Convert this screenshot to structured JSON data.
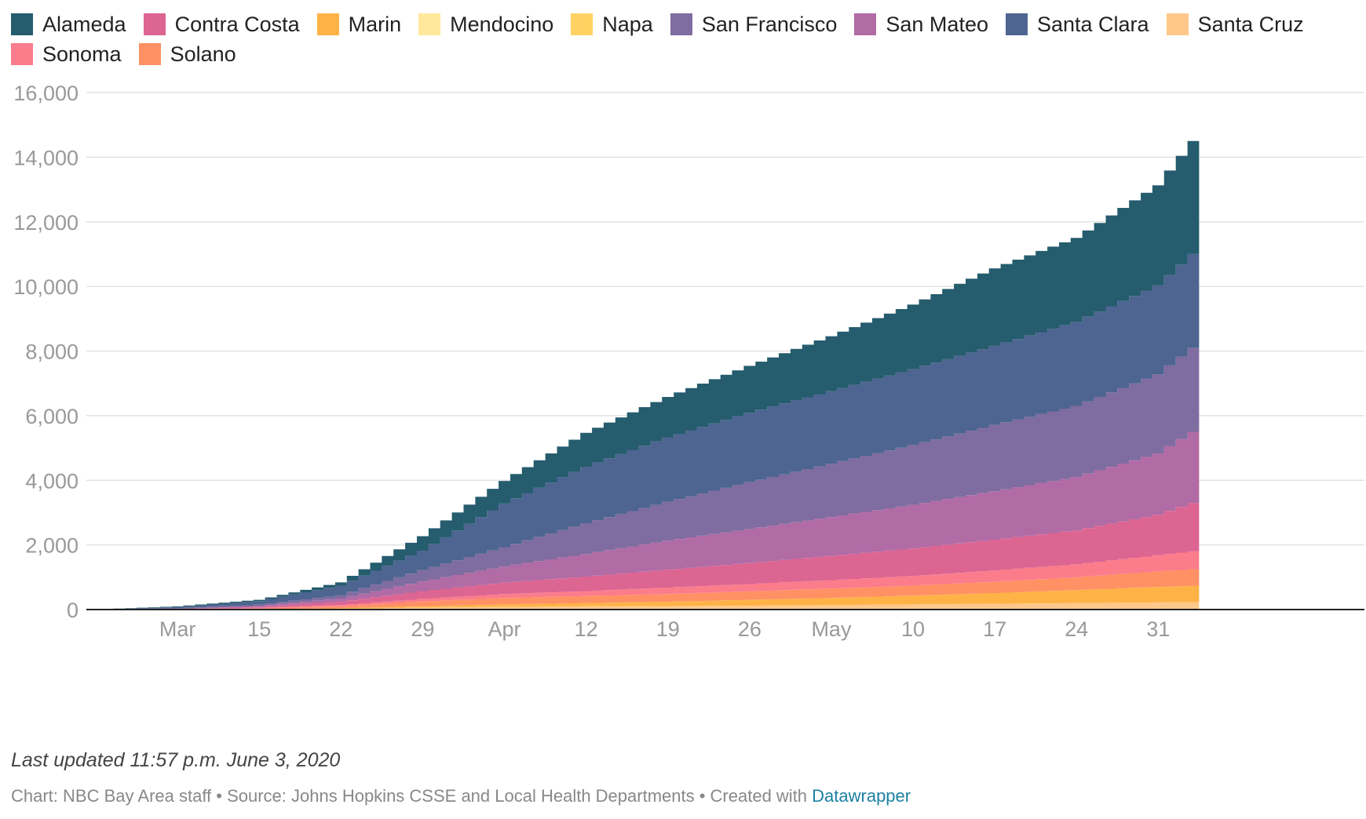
{
  "chart_data": {
    "type": "area",
    "stacked": true,
    "title": "",
    "xlabel": "",
    "ylabel": "",
    "ylim": [
      0,
      16000
    ],
    "y_ticks": [
      0,
      2000,
      4000,
      6000,
      8000,
      10000,
      12000,
      14000,
      16000
    ],
    "y_tick_labels": [
      "0",
      "2,000",
      "4,000",
      "6,000",
      "8,000",
      "10,000",
      "12,000",
      "14,000",
      "16,000"
    ],
    "x_range": [
      "2020-03-01",
      "2020-06-03"
    ],
    "x_ticks": [
      "2020-03-08",
      "2020-03-15",
      "2020-03-22",
      "2020-03-29",
      "2020-04-05",
      "2020-04-12",
      "2020-04-19",
      "2020-04-26",
      "2020-05-03",
      "2020-05-10",
      "2020-05-17",
      "2020-05-24",
      "2020-05-31"
    ],
    "x_tick_labels": [
      "Mar",
      "15",
      "22",
      "29",
      "Apr",
      "12",
      "19",
      "26",
      "May",
      "10",
      "17",
      "24",
      "31"
    ],
    "grid": true,
    "legend_position": "top",
    "stack_order_bottom_to_top": [
      "Santa Cruz",
      "Marin",
      "Solano",
      "Sonoma",
      "Contra Costa",
      "San Mateo",
      "San Francisco",
      "Santa Clara",
      "Alameda"
    ],
    "key_dates": [
      "2020-03-01",
      "2020-03-08",
      "2020-03-15",
      "2020-03-22",
      "2020-03-29",
      "2020-04-05",
      "2020-04-12",
      "2020-04-19",
      "2020-04-26",
      "2020-05-03",
      "2020-05-10",
      "2020-05-17",
      "2020-05-24",
      "2020-05-31",
      "2020-06-03"
    ],
    "series": [
      {
        "name": "Alameda",
        "color": "#255c6e",
        "values": [
          0,
          20,
          40,
          100,
          450,
          700,
          1050,
          1250,
          1450,
          1700,
          2000,
          2400,
          2600,
          3100,
          3500
        ]
      },
      {
        "name": "Contra Costa",
        "color": "#dc6592",
        "values": [
          0,
          5,
          30,
          100,
          240,
          350,
          450,
          550,
          650,
          750,
          850,
          950,
          1050,
          1250,
          1500
        ]
      },
      {
        "name": "Marin",
        "color": "#ffb347",
        "values": [
          0,
          0,
          5,
          20,
          40,
          80,
          100,
          130,
          180,
          220,
          270,
          330,
          400,
          480,
          500
        ]
      },
      {
        "name": "Mendocino",
        "color": "#ffe89c",
        "values": [
          0,
          0,
          0,
          0,
          0,
          0,
          2,
          3,
          4,
          5,
          6,
          8,
          10,
          12,
          15
        ]
      },
      {
        "name": "Napa",
        "color": "#ffd262",
        "values": [
          0,
          0,
          0,
          5,
          10,
          20,
          40,
          50,
          60,
          65,
          70,
          75,
          80,
          85,
          90
        ]
      },
      {
        "name": "San Francisco",
        "color": "#7f6ca0",
        "values": [
          0,
          15,
          40,
          100,
          350,
          600,
          950,
          1200,
          1450,
          1650,
          1850,
          2050,
          2200,
          2450,
          2600
        ]
      },
      {
        "name": "San Mateo",
        "color": "#b16ba5",
        "values": [
          0,
          10,
          30,
          100,
          300,
          500,
          700,
          900,
          1050,
          1200,
          1350,
          1500,
          1650,
          1900,
          2200
        ]
      },
      {
        "name": "Santa Clara",
        "color": "#4d6590",
        "values": [
          0,
          40,
          110,
          300,
          600,
          1350,
          1750,
          2000,
          2150,
          2250,
          2350,
          2450,
          2600,
          2750,
          2900
        ]
      },
      {
        "name": "Santa Cruz",
        "color": "#ffc88a",
        "values": [
          0,
          0,
          5,
          20,
          60,
          80,
          100,
          110,
          120,
          140,
          160,
          180,
          200,
          220,
          230
        ]
      },
      {
        "name": "Sonoma",
        "color": "#fb7c8b",
        "values": [
          0,
          5,
          20,
          40,
          80,
          120,
          150,
          200,
          230,
          260,
          300,
          350,
          400,
          500,
          550
        ]
      },
      {
        "name": "Solano",
        "color": "#ff9164",
        "values": [
          0,
          5,
          20,
          60,
          150,
          200,
          220,
          240,
          260,
          290,
          310,
          350,
          400,
          480,
          520
        ]
      }
    ]
  },
  "legend_order": [
    "Alameda",
    "Contra Costa",
    "Marin",
    "Mendocino",
    "Napa",
    "San Francisco",
    "San Mateo",
    "Santa Clara",
    "Santa Cruz",
    "Sonoma",
    "Solano"
  ],
  "footer": {
    "updated": "Last updated 11:57 p.m. June 3, 2020",
    "credits_prefix": "Chart: NBC Bay Area staff • Source: Johns Hopkins CSSE and Local Health Departments • Created with ",
    "credits_link": "Datawrapper"
  }
}
